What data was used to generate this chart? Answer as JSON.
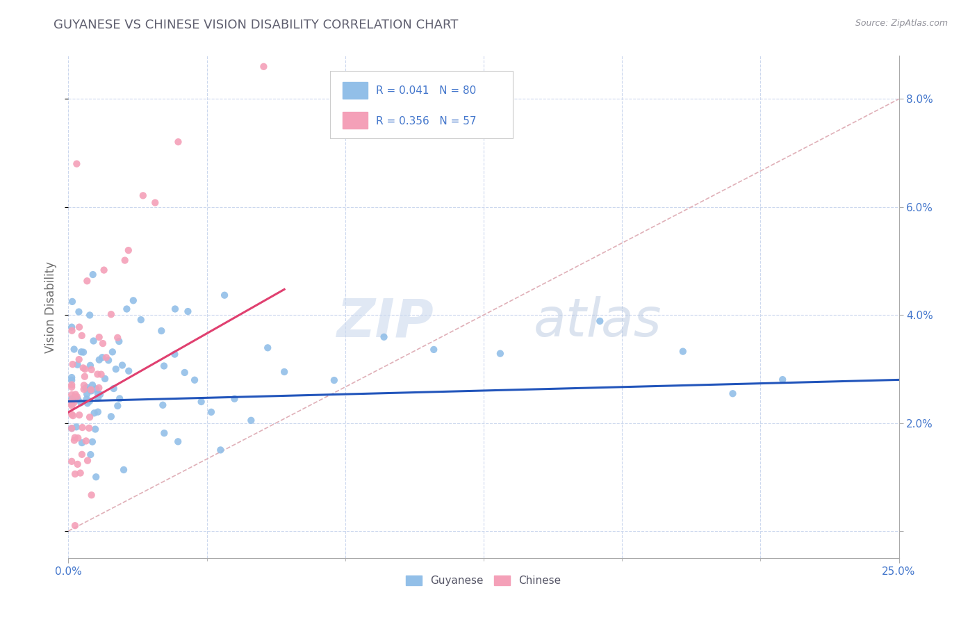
{
  "title": "GUYANESE VS CHINESE VISION DISABILITY CORRELATION CHART",
  "source": "Source: ZipAtlas.com",
  "ylabel": "Vision Disability",
  "xlim": [
    0.0,
    0.25
  ],
  "ylim": [
    -0.005,
    0.088
  ],
  "guyanese_R": 0.041,
  "guyanese_N": 80,
  "chinese_R": 0.356,
  "chinese_N": 57,
  "guyanese_color": "#92bfe8",
  "chinese_color": "#f4a0b8",
  "guyanese_line_color": "#2255bb",
  "chinese_line_color": "#e04070",
  "background_color": "#ffffff",
  "grid_color": "#ccd8ee",
  "title_color": "#606070",
  "source_color": "#909099",
  "tick_label_color": "#4477cc",
  "ylabel_color": "#707070"
}
